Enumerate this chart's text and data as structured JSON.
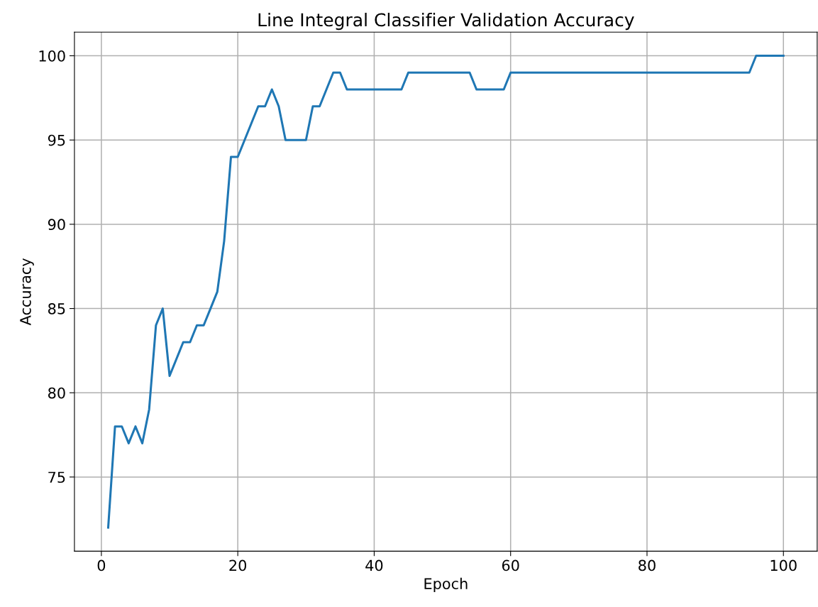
{
  "chart_data": {
    "type": "line",
    "title": "Line Integral Classifier Validation Accuracy",
    "xlabel": "Epoch",
    "ylabel": "Accuracy",
    "x": [
      1,
      2,
      3,
      4,
      5,
      6,
      7,
      8,
      9,
      10,
      11,
      12,
      13,
      14,
      15,
      16,
      17,
      18,
      19,
      20,
      21,
      22,
      23,
      24,
      25,
      26,
      27,
      28,
      29,
      30,
      31,
      32,
      33,
      34,
      35,
      36,
      37,
      38,
      39,
      40,
      41,
      42,
      43,
      44,
      45,
      46,
      47,
      48,
      49,
      50,
      51,
      52,
      53,
      54,
      55,
      56,
      57,
      58,
      59,
      60,
      61,
      62,
      63,
      64,
      65,
      66,
      67,
      68,
      69,
      70,
      71,
      72,
      73,
      74,
      75,
      76,
      77,
      78,
      79,
      80,
      81,
      82,
      83,
      84,
      85,
      86,
      87,
      88,
      89,
      90,
      91,
      92,
      93,
      94,
      95,
      96,
      97,
      98,
      99,
      100
    ],
    "series": [
      {
        "color": "#1f77b4",
        "values": [
          72,
          78,
          78,
          77,
          78,
          77,
          79,
          84,
          85,
          81,
          82,
          83,
          83,
          84,
          84,
          85,
          86,
          89,
          94,
          94,
          95,
          96,
          97,
          97,
          98,
          97,
          95,
          95,
          95,
          95,
          97,
          97,
          98,
          99,
          99,
          98,
          98,
          98,
          98,
          98,
          98,
          98,
          98,
          98,
          99,
          99,
          99,
          99,
          99,
          99,
          99,
          99,
          99,
          99,
          98,
          98,
          98,
          98,
          98,
          99,
          99,
          99,
          99,
          99,
          99,
          99,
          99,
          99,
          99,
          99,
          99,
          99,
          99,
          99,
          99,
          99,
          99,
          99,
          99,
          99,
          99,
          99,
          99,
          99,
          99,
          99,
          99,
          99,
          99,
          99,
          99,
          99,
          99,
          99,
          99,
          100,
          100,
          100,
          100,
          100
        ]
      }
    ],
    "xlim": [
      -3.95,
      104.95
    ],
    "xticks": [
      0,
      20,
      40,
      60,
      80,
      100
    ],
    "ylim": [
      70.6,
      101.4
    ],
    "yticks": [
      75,
      80,
      85,
      90,
      95,
      100
    ],
    "grid": true,
    "marker": "none",
    "line_style": "solid",
    "legend": false
  }
}
